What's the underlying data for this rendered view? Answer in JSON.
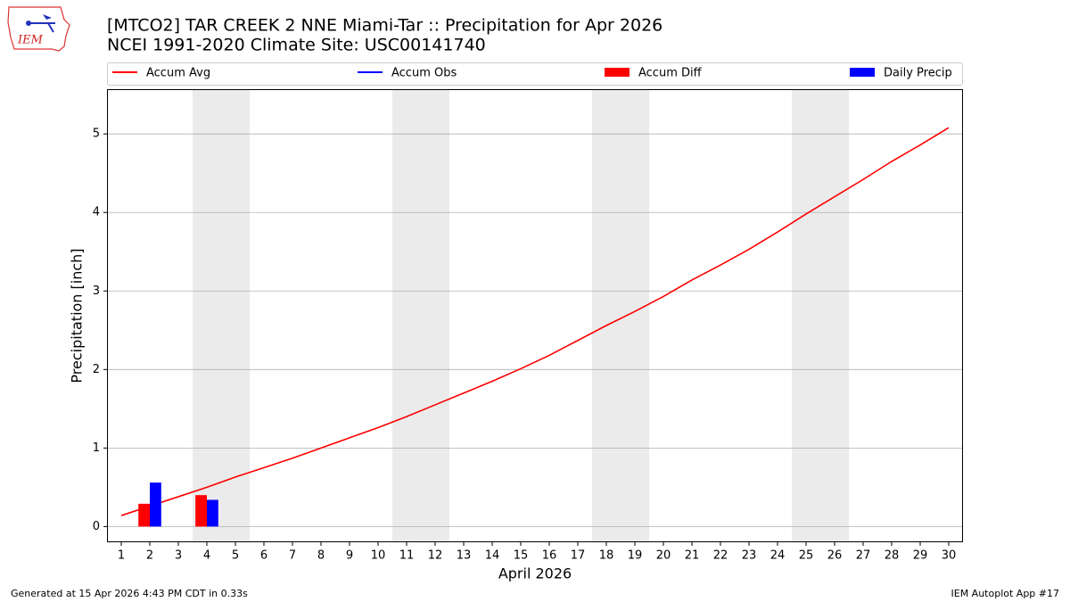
{
  "logo_text": "IEM",
  "footer": {
    "left": "Generated at 15 Apr 2026 4:43 PM CDT in 0.33s",
    "right": "IEM Autoplot App #17"
  },
  "chart_data": {
    "type": "combo",
    "title": "[MTCO2] TAR CREEK 2 NNE Miami-Tar :: Precipitation for Apr 2026",
    "subtitle": "NCEI 1991-2020 Climate Site: USC00141740",
    "x_label": "April 2026",
    "y_label": "Precipitation [inch]",
    "x": [
      1,
      2,
      3,
      4,
      5,
      6,
      7,
      8,
      9,
      10,
      11,
      12,
      13,
      14,
      15,
      16,
      17,
      18,
      19,
      20,
      21,
      22,
      23,
      24,
      25,
      26,
      27,
      28,
      29,
      30
    ],
    "xlim": [
      0.5,
      30.5
    ],
    "xticks": [
      1,
      2,
      3,
      4,
      5,
      6,
      7,
      8,
      9,
      10,
      11,
      12,
      13,
      14,
      15,
      16,
      17,
      18,
      19,
      20,
      21,
      22,
      23,
      24,
      25,
      26,
      27,
      28,
      29,
      30
    ],
    "ylim": [
      -0.2,
      5.57
    ],
    "yticks": [
      0,
      1,
      2,
      3,
      4,
      5
    ],
    "grid": true,
    "shaded_ranges": [
      [
        3.5,
        5.5
      ],
      [
        10.5,
        12.5
      ],
      [
        17.5,
        19.5
      ],
      [
        24.5,
        26.5
      ]
    ],
    "series": [
      {
        "name": "Accum Avg",
        "type": "line",
        "color": "#ff0000",
        "values": [
          0.14,
          0.26,
          0.38,
          0.5,
          0.63,
          0.75,
          0.87,
          1.0,
          1.13,
          1.26,
          1.4,
          1.55,
          1.7,
          1.85,
          2.01,
          2.18,
          2.37,
          2.56,
          2.74,
          2.93,
          3.14,
          3.33,
          3.53,
          3.75,
          3.98,
          4.2,
          4.42,
          4.65,
          4.86,
          5.08
        ]
      },
      {
        "name": "Accum Obs",
        "type": "line",
        "color": "#0000ff",
        "values": [
          null,
          null,
          null,
          null,
          null,
          null,
          null,
          null,
          null,
          null,
          null,
          null,
          null,
          null,
          null,
          null,
          null,
          null,
          null,
          null,
          null,
          null,
          null,
          null,
          null,
          null,
          null,
          null,
          null,
          null
        ]
      },
      {
        "name": "Accum Diff",
        "type": "bar",
        "color": "#ff0000",
        "values": [
          null,
          0.29,
          null,
          0.4,
          null,
          null,
          null,
          null,
          null,
          null,
          null,
          null,
          null,
          null,
          null,
          null,
          null,
          null,
          null,
          null,
          null,
          null,
          null,
          null,
          null,
          null,
          null,
          null,
          null,
          null
        ]
      },
      {
        "name": "Daily Precip",
        "type": "bar",
        "color": "#0000ff",
        "values": [
          null,
          0.56,
          null,
          0.34,
          null,
          null,
          null,
          null,
          null,
          null,
          null,
          null,
          null,
          null,
          null,
          null,
          null,
          null,
          null,
          null,
          null,
          null,
          null,
          null,
          null,
          null,
          null,
          null,
          null,
          null
        ]
      }
    ]
  }
}
